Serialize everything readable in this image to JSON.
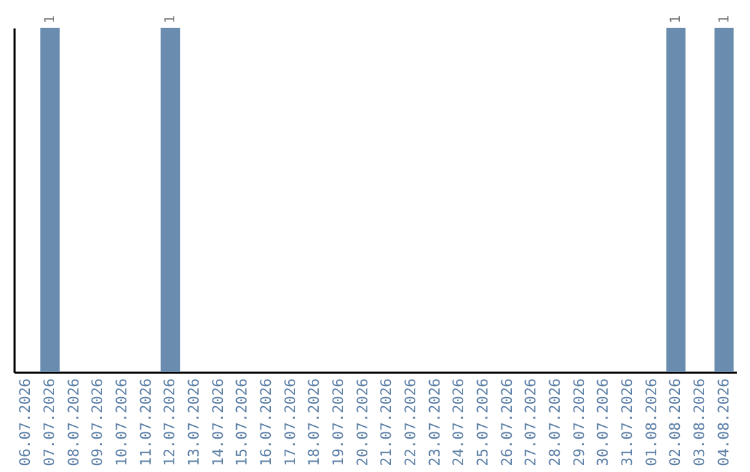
{
  "chart_data": {
    "type": "bar",
    "categories": [
      "06.07.2026",
      "07.07.2026",
      "08.07.2026",
      "09.07.2026",
      "10.07.2026",
      "11.07.2026",
      "12.07.2026",
      "13.07.2026",
      "14.07.2026",
      "15.07.2026",
      "16.07.2026",
      "17.07.2026",
      "18.07.2026",
      "19.07.2026",
      "20.07.2026",
      "21.07.2026",
      "22.07.2026",
      "23.07.2026",
      "24.07.2026",
      "25.07.2026",
      "26.07.2026",
      "27.07.2026",
      "28.07.2026",
      "29.07.2026",
      "30.07.2026",
      "31.07.2026",
      "01.08.2026",
      "02.08.2026",
      "03.08.2026",
      "04.08.2026"
    ],
    "values": [
      0,
      1,
      0,
      0,
      0,
      0,
      1,
      0,
      0,
      0,
      0,
      0,
      0,
      0,
      0,
      0,
      0,
      0,
      0,
      0,
      0,
      0,
      0,
      0,
      0,
      0,
      0,
      1,
      0,
      1
    ],
    "value_labels": [
      null,
      "1",
      null,
      null,
      null,
      null,
      "1",
      null,
      null,
      null,
      null,
      null,
      null,
      null,
      null,
      null,
      null,
      null,
      null,
      null,
      null,
      null,
      null,
      null,
      null,
      null,
      null,
      "1",
      null,
      "1"
    ],
    "color": "#6a8caf",
    "tick_labels": "x",
    "grid": false
  }
}
